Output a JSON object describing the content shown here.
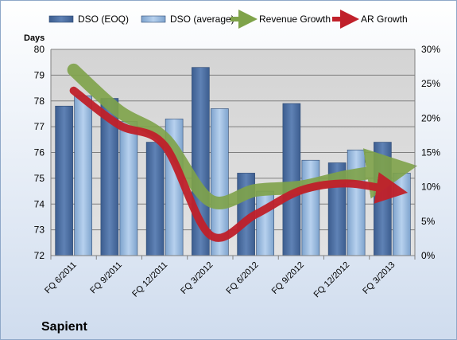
{
  "chart_data": {
    "type": "bar",
    "title": "Sapient",
    "ylabel": "Days",
    "categories": [
      "FQ 6/2011",
      "FQ 9/2011",
      "FQ 12/2011",
      "FQ 3/2012",
      "FQ 6/2012",
      "FQ 9/2012",
      "FQ 12/2012",
      "FQ 3/2013"
    ],
    "ylim": [
      72,
      80
    ],
    "yticks": [
      "72",
      "73",
      "74",
      "75",
      "76",
      "77",
      "78",
      "79",
      "80"
    ],
    "y2lim": [
      0,
      30
    ],
    "y2ticks": [
      "0%",
      "5%",
      "10%",
      "15%",
      "20%",
      "25%",
      "30%"
    ],
    "series": [
      {
        "name": "DSO (EOQ)",
        "type": "bar",
        "axis": "left",
        "color": "#4a6da0",
        "values": [
          77.8,
          78.1,
          76.4,
          79.3,
          75.2,
          77.9,
          75.6,
          76.4
        ]
      },
      {
        "name": "DSO (average)",
        "type": "bar",
        "axis": "left",
        "color": "#8fb2d8",
        "values": [
          78.2,
          77.2,
          77.3,
          77.7,
          74.5,
          75.7,
          76.1,
          75.2
        ]
      },
      {
        "name": "Revenue Growth",
        "type": "line",
        "axis": "right",
        "color": "#7fa34a",
        "unit": "%",
        "values": [
          27,
          21,
          17,
          8,
          9.5,
          10,
          11.5,
          12.5
        ]
      },
      {
        "name": "AR Growth",
        "type": "line",
        "axis": "right",
        "color": "#c0202a",
        "unit": "%",
        "values": [
          24,
          19,
          16,
          3,
          6,
          9.5,
          10.5,
          9.5
        ]
      }
    ],
    "grid": true,
    "legend": "top",
    "background": "#d9d9d9",
    "outer_background": "#e6edf7"
  }
}
